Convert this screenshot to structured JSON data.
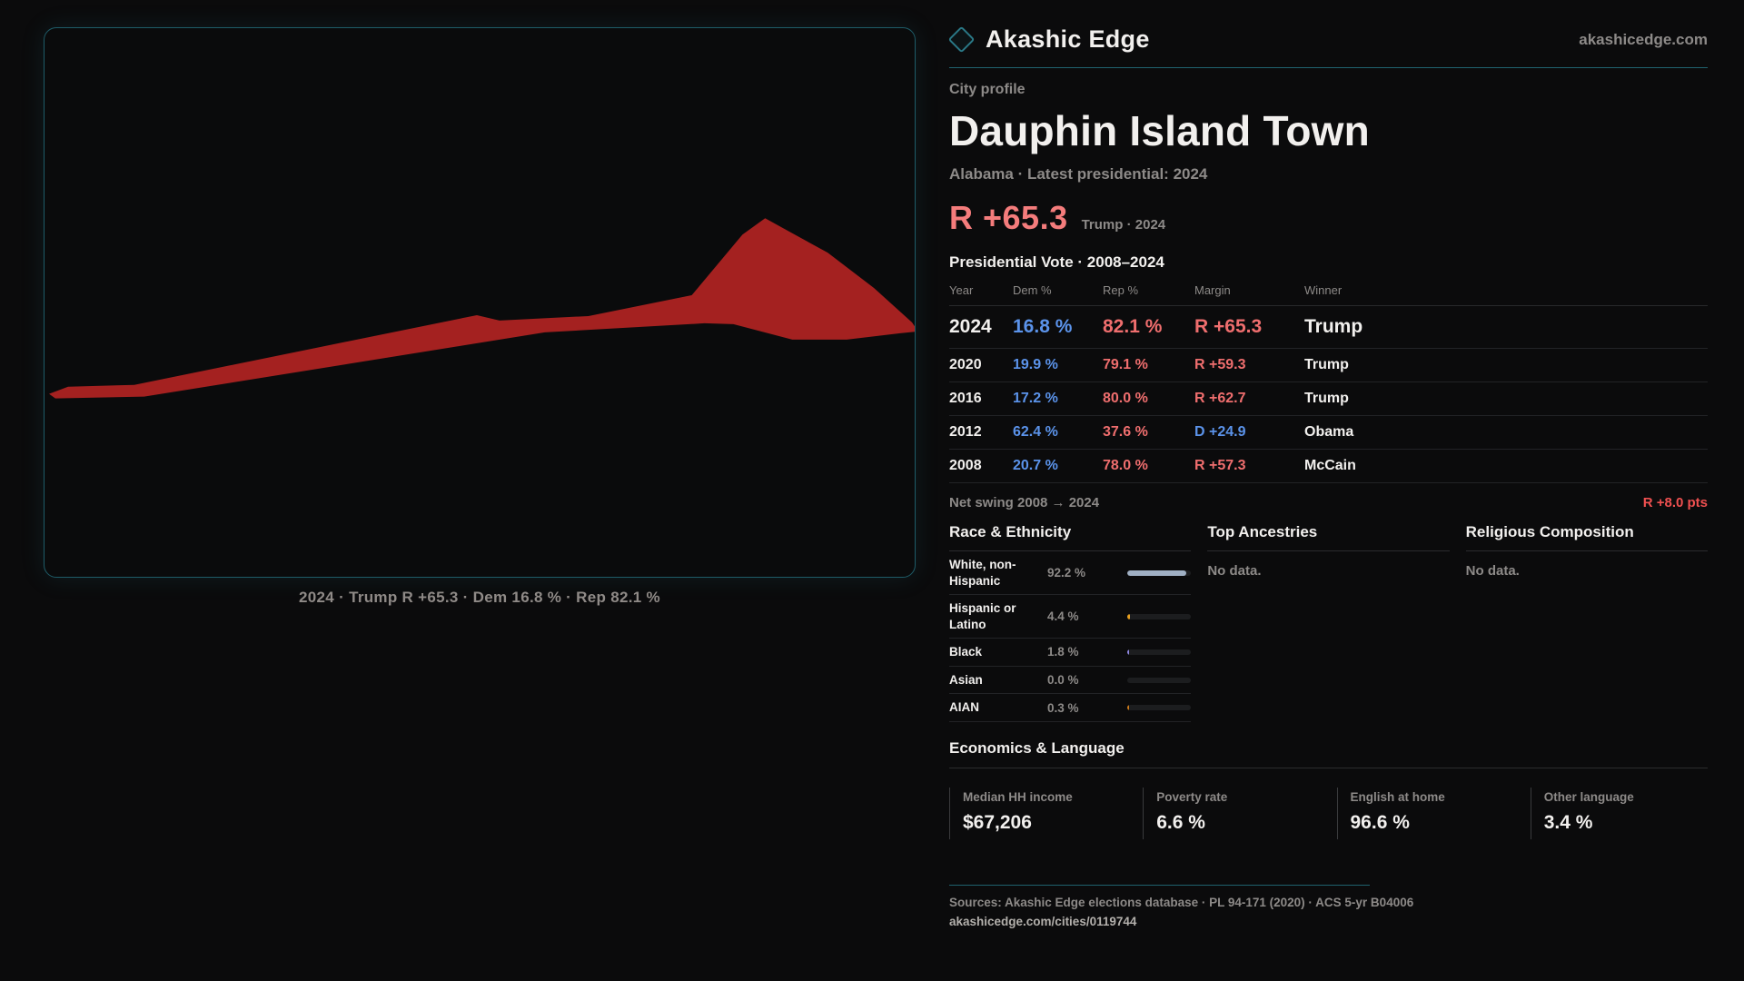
{
  "brand": {
    "name": "Akashic Edge",
    "domain": "akashicedge.com",
    "accent_teal": "#20626e"
  },
  "map": {
    "caption": "2024 · Trump R +65.3 · Dem 16.8 % · Rep 82.1 %",
    "shape_color": "#a42120",
    "border_color": "#1e5c68"
  },
  "profile": {
    "kicker": "City profile",
    "title": "Dauphin Island Town",
    "subtitle": "Alabama · Latest presidential: 2024",
    "headline_margin": {
      "value": "R +65.3",
      "detail": "Trump · 2024",
      "color": "#f47c7c"
    }
  },
  "vote_table": {
    "title": "Presidential Vote · 2008–2024",
    "columns": [
      "Year",
      "Dem %",
      "Rep %",
      "Margin",
      "Winner"
    ],
    "rows": [
      {
        "year": "2024",
        "dem": "16.8 %",
        "rep": "82.1 %",
        "margin": "R +65.3",
        "winner": "Trump",
        "margin_party": "R"
      },
      {
        "year": "2020",
        "dem": "19.9 %",
        "rep": "79.1 %",
        "margin": "R +59.3",
        "winner": "Trump",
        "margin_party": "R"
      },
      {
        "year": "2016",
        "dem": "17.2 %",
        "rep": "80.0 %",
        "margin": "R +62.7",
        "winner": "Trump",
        "margin_party": "R"
      },
      {
        "year": "2012",
        "dem": "62.4 %",
        "rep": "37.6 %",
        "margin": "D +24.9",
        "winner": "Obama",
        "margin_party": "D"
      },
      {
        "year": "2008",
        "dem": "20.7 %",
        "rep": "78.0 %",
        "margin": "R +57.3",
        "winner": "McCain",
        "margin_party": "R"
      }
    ],
    "net_swing_label": "Net swing 2008 → 2024",
    "net_swing_value": "R +8.0 pts",
    "dem_color": "#5b93ea",
    "rep_color": "#ef6e6e"
  },
  "demographics": {
    "race": {
      "heading": "Race & Ethnicity",
      "rows": [
        {
          "label": "White, non-Hispanic",
          "value": "92.2 %",
          "pct": 92.2,
          "bar_color": "#a0b0c4"
        },
        {
          "label": "Hispanic or Latino",
          "value": "4.4 %",
          "pct": 4.4,
          "bar_color": "#e8a01f"
        },
        {
          "label": "Black",
          "value": "1.8 %",
          "pct": 1.8,
          "bar_color": "#8d86e0"
        },
        {
          "label": "Asian",
          "value": "0.0 %",
          "pct": 0.0,
          "bar_color": "#a0b0c4"
        },
        {
          "label": "AIAN",
          "value": "0.3 %",
          "pct": 0.3,
          "bar_color": "#cc7a1a"
        }
      ]
    },
    "ancestries": {
      "heading": "Top Ancestries",
      "empty": "No data."
    },
    "religion": {
      "heading": "Religious Composition",
      "empty": "No data."
    }
  },
  "economics": {
    "heading": "Economics & Language",
    "stats": [
      {
        "label": "Median HH income",
        "value": "$67,206"
      },
      {
        "label": "Poverty rate",
        "value": "6.6 %"
      },
      {
        "label": "English at home",
        "value": "96.6 %"
      },
      {
        "label": "Other language",
        "value": "3.4 %"
      }
    ]
  },
  "footer": {
    "sources": "Sources: Akashic Edge elections database · PL 94-171 (2020) · ACS 5-yr B04006",
    "permalink": "akashicedge.com/cities/0119744"
  }
}
